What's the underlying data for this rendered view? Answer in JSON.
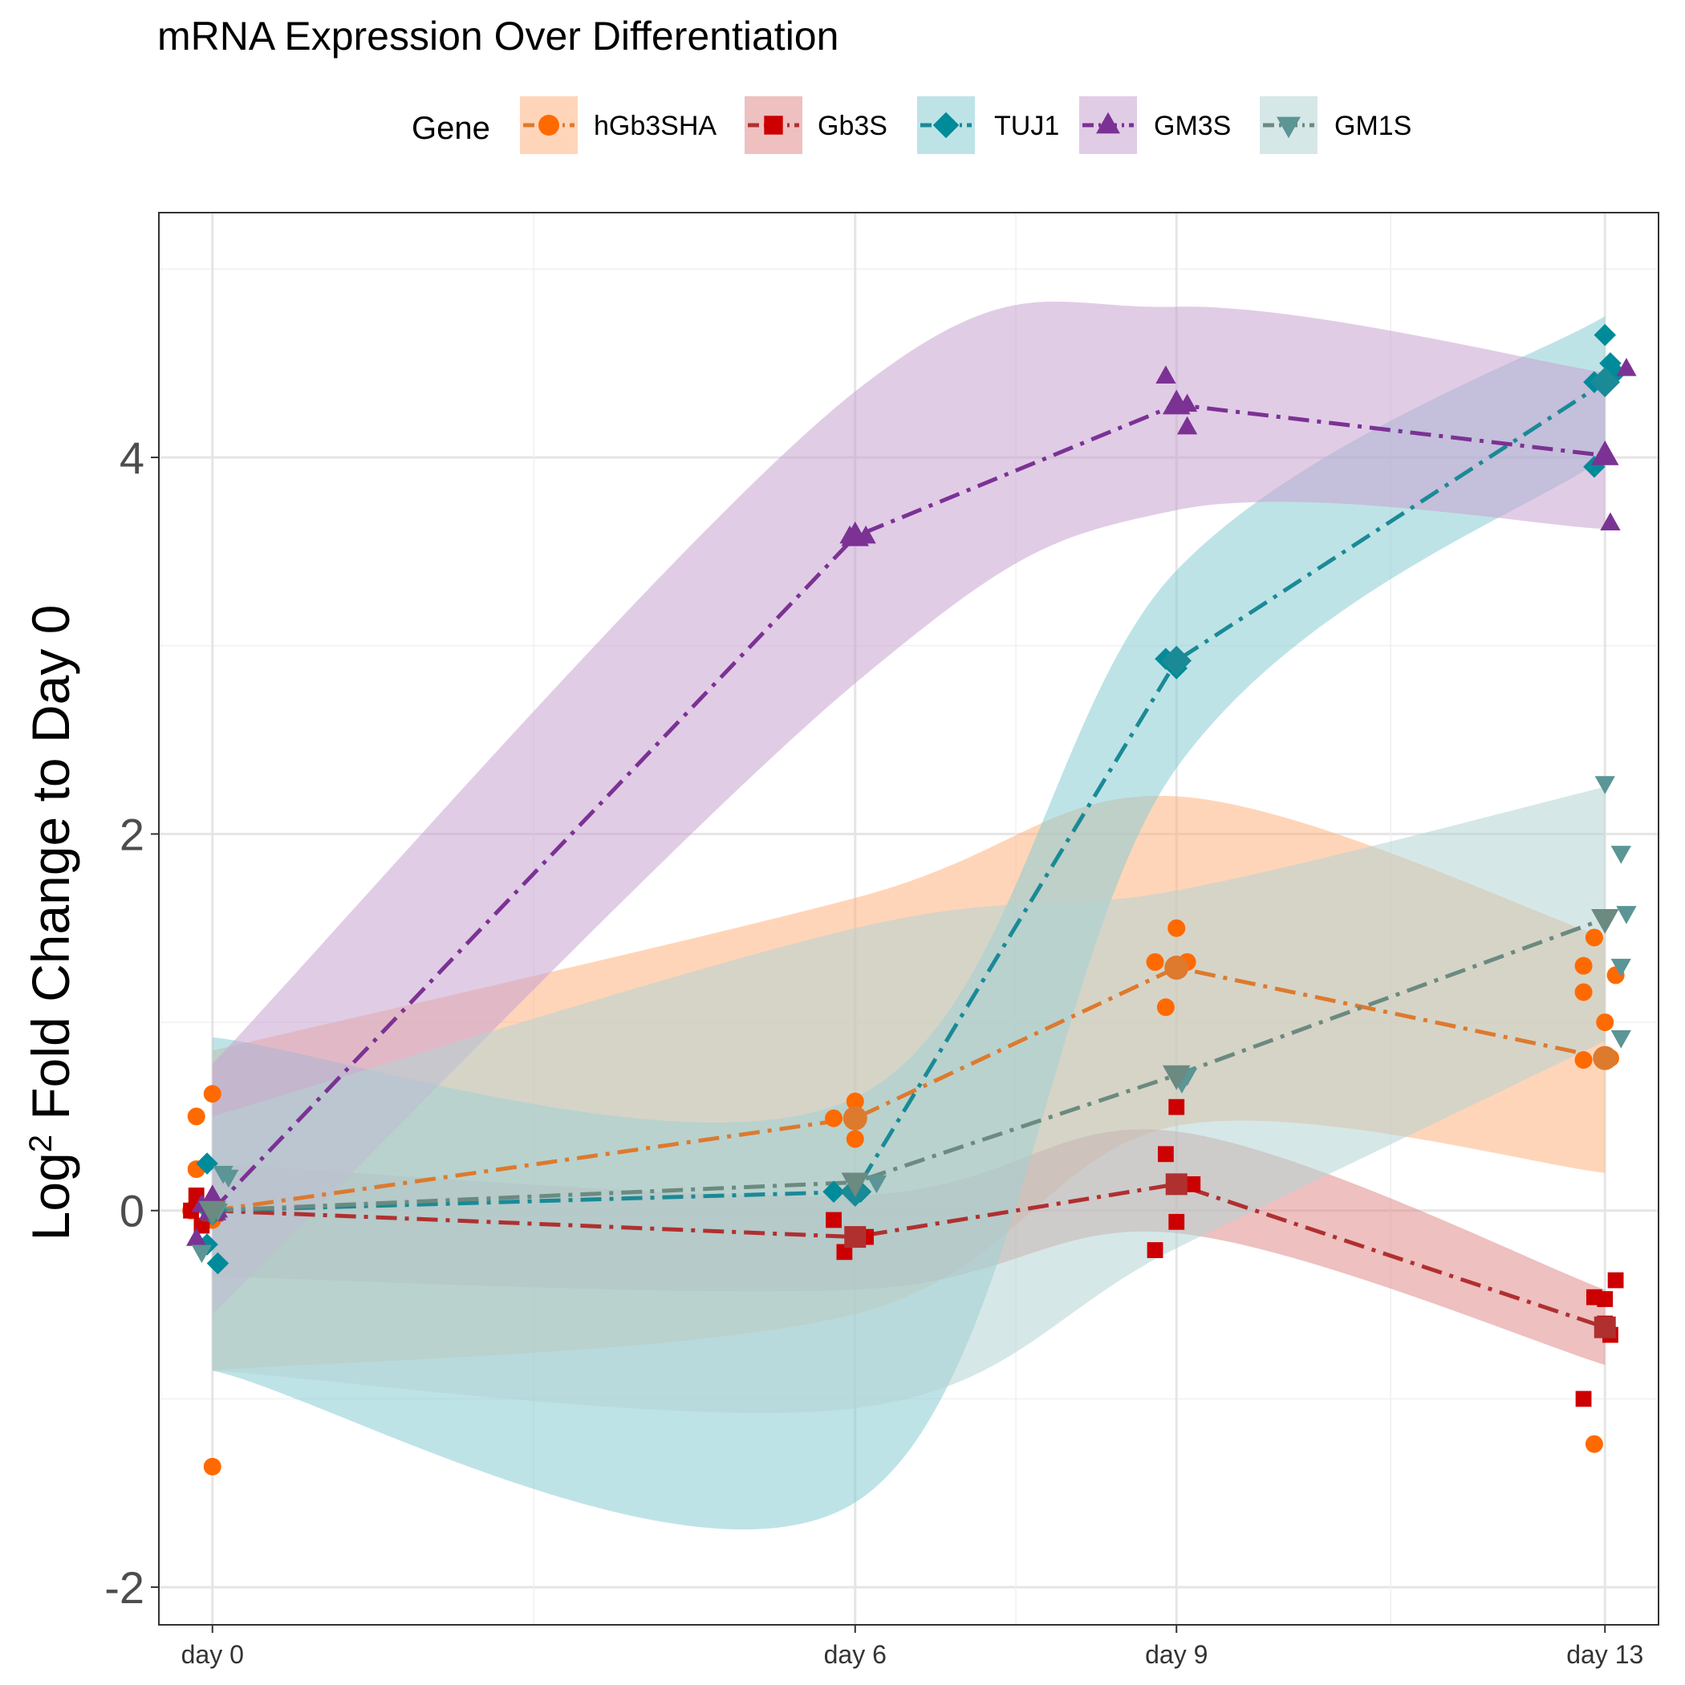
{
  "chart_data": {
    "type": "line",
    "title": "mRNA Expression Over Differentiation",
    "ylabel_base": "Log",
    "ylabel_sup": "2",
    "ylabel_rest": " Fold Change to Day 0",
    "xlabel": "",
    "legend_title": "Gene",
    "legend_position": "top",
    "grid": true,
    "ylim": [
      -2.2,
      5.3
    ],
    "xlim": [
      -0.5,
      13.5
    ],
    "x": [
      0,
      6,
      9,
      13
    ],
    "x_tick_labels": [
      "day 0",
      "day 6",
      "day 9",
      "day 13"
    ],
    "y_ticks": [
      -2,
      0,
      2,
      4
    ],
    "y_tick_labels": [
      "-2",
      "0",
      "2",
      "4"
    ],
    "series": [
      {
        "name": "hGb3SHA",
        "color": "#ff6a00",
        "line_color": "#dd7a2e",
        "band_color": "#ffb27f",
        "marker": "circle",
        "means": [
          0.0,
          0.49,
          1.29,
          0.81
        ],
        "ribbon_lower": [
          -0.85,
          -0.55,
          0.45,
          0.2
        ],
        "ribbon_upper": [
          0.85,
          1.66,
          2.2,
          1.45
        ],
        "points": [
          [
            0.0,
            0.0
          ],
          [
            -0.2,
            0.0
          ],
          [
            -0.15,
            0.5
          ],
          [
            -0.15,
            0.22
          ],
          [
            0.0,
            0.62
          ],
          [
            0.0,
            -1.36
          ],
          [
            0.0,
            -0.05
          ],
          [
            5.8,
            0.49
          ],
          [
            6.0,
            0.58
          ],
          [
            6.0,
            0.38
          ],
          [
            8.8,
            1.32
          ],
          [
            8.9,
            1.08
          ],
          [
            9.0,
            1.29
          ],
          [
            9.0,
            1.5
          ],
          [
            9.1,
            1.32
          ],
          [
            12.8,
            1.3
          ],
          [
            12.8,
            1.16
          ],
          [
            12.9,
            1.45
          ],
          [
            13.0,
            1.0
          ],
          [
            13.1,
            1.25
          ],
          [
            12.8,
            0.8
          ],
          [
            13.05,
            0.81
          ],
          [
            12.9,
            -1.24
          ]
        ]
      },
      {
        "name": "Gb3S",
        "color": "#cc0000",
        "line_color": "#b03030",
        "band_color": "#e08c8c",
        "marker": "square",
        "means": [
          0.0,
          -0.14,
          0.14,
          -0.62
        ],
        "ribbon_lower": [
          -0.35,
          -0.42,
          -0.12,
          -0.82
        ],
        "ribbon_upper": [
          0.25,
          0.08,
          0.42,
          -0.42
        ],
        "points": [
          [
            -0.2,
            0.0
          ],
          [
            -0.15,
            0.08
          ],
          [
            -0.1,
            -0.08
          ],
          [
            0.0,
            0.0
          ],
          [
            5.8,
            -0.05
          ],
          [
            5.9,
            -0.22
          ],
          [
            6.1,
            -0.14
          ],
          [
            8.8,
            -0.21
          ],
          [
            8.9,
            0.3
          ],
          [
            9.0,
            0.55
          ],
          [
            9.0,
            -0.06
          ],
          [
            9.15,
            0.14
          ],
          [
            12.8,
            -1.0
          ],
          [
            12.9,
            -0.46
          ],
          [
            13.0,
            -0.47
          ],
          [
            13.0,
            -0.6
          ],
          [
            13.05,
            -0.66
          ],
          [
            13.1,
            -0.37
          ]
        ]
      },
      {
        "name": "TUJ1",
        "color": "#008b9a",
        "line_color": "#1a8a96",
        "band_color": "#88ccd4",
        "marker": "diamond",
        "means": [
          0.0,
          0.1,
          2.92,
          4.4
        ],
        "ribbon_lower": [
          -0.85,
          -1.55,
          2.35,
          4.0
        ],
        "ribbon_upper": [
          0.92,
          0.6,
          3.4,
          4.75
        ],
        "points": [
          [
            -0.05,
            0.25
          ],
          [
            0.05,
            -0.28
          ],
          [
            -0.05,
            -0.18
          ],
          [
            0.0,
            0.0
          ],
          [
            5.8,
            0.1
          ],
          [
            6.05,
            0.1
          ],
          [
            8.9,
            2.93
          ],
          [
            9.0,
            2.88
          ],
          [
            12.9,
            3.95
          ],
          [
            12.9,
            4.4
          ],
          [
            13.0,
            4.65
          ],
          [
            13.05,
            4.5
          ],
          [
            13.1,
            4.45
          ]
        ]
      },
      {
        "name": "GM3S",
        "color": "#7b3294",
        "line_color": "#7b3294",
        "band_color": "#c9a3d2",
        "marker": "triangle-up",
        "means": [
          0.0,
          3.58,
          4.28,
          4.01
        ],
        "ribbon_lower": [
          -0.55,
          2.8,
          3.72,
          3.62
        ],
        "ribbon_upper": [
          0.78,
          4.35,
          4.8,
          4.45
        ],
        "points": [
          [
            -0.15,
            -0.15
          ],
          [
            -0.1,
            0.03
          ],
          [
            0.0,
            0.08
          ],
          [
            0.05,
            0.0
          ],
          [
            5.95,
            3.58
          ],
          [
            6.1,
            3.58
          ],
          [
            8.9,
            4.43
          ],
          [
            9.1,
            4.16
          ],
          [
            9.1,
            4.28
          ],
          [
            13.0,
            4.02
          ],
          [
            13.05,
            3.65
          ],
          [
            13.2,
            4.47
          ]
        ]
      },
      {
        "name": "GM1S",
        "color": "#5b9595",
        "line_color": "#6b8a80",
        "band_color": "#b4d4d4",
        "marker": "triangle-down",
        "means": [
          0.0,
          0.15,
          0.72,
          1.55
        ],
        "ribbon_lower": [
          -0.85,
          -1.05,
          -0.2,
          0.9
        ],
        "ribbon_upper": [
          0.5,
          1.5,
          1.7,
          2.25
        ],
        "points": [
          [
            -0.1,
            -0.22
          ],
          [
            0.05,
            0.0
          ],
          [
            0.1,
            0.2
          ],
          [
            0.15,
            0.18
          ],
          [
            6.2,
            0.15
          ],
          [
            9.1,
            0.72
          ],
          [
            9.05,
            0.68
          ],
          [
            13.0,
            2.27
          ],
          [
            13.15,
            1.9
          ],
          [
            13.15,
            1.3
          ],
          [
            13.2,
            1.58
          ],
          [
            13.15,
            0.92
          ]
        ]
      }
    ]
  }
}
